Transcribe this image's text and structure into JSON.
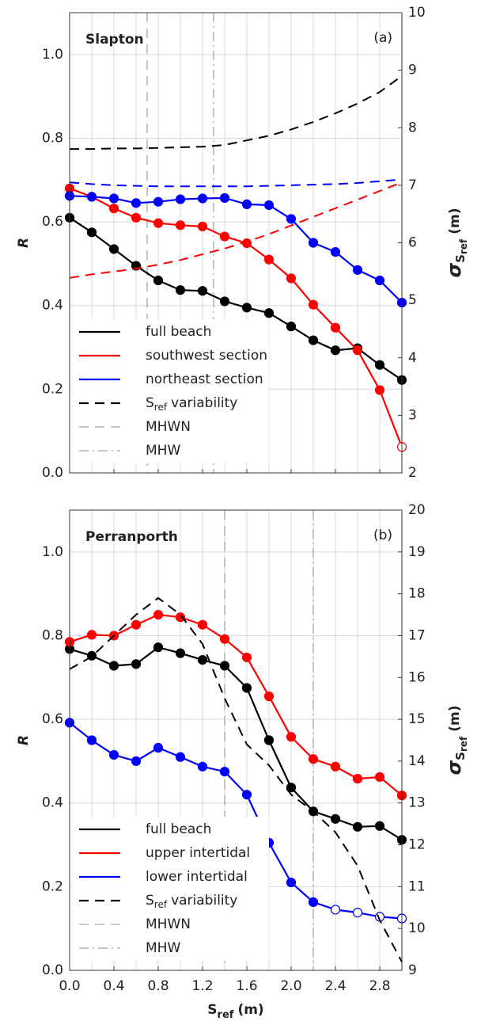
{
  "chart_data": [
    {
      "type": "line",
      "title": "Slapton",
      "panel_label": "(a)",
      "ylabel": "R",
      "y2label": {
        "symbol": "σ",
        "sub": "S",
        "subsub": "ref",
        "unit": "(m)"
      },
      "x": [
        0,
        0.2,
        0.4,
        0.6,
        0.8,
        1.0,
        1.2,
        1.4,
        1.6,
        1.8,
        2.0,
        2.2,
        2.4,
        2.6,
        2.8,
        3.0
      ],
      "xlim": [
        0,
        3
      ],
      "xticks": [
        {
          "value": 0,
          "label": "0.0"
        },
        0.4,
        0.8,
        1.2,
        1.6,
        {
          "value": 2,
          "label": "2.0"
        },
        2.4,
        2.8
      ],
      "xminorticks": [
        0.2,
        0.6,
        1.0,
        1.4,
        1.8,
        2.2,
        2.6
      ],
      "show_x_tick_labels": false,
      "ylim": [
        0,
        1.1
      ],
      "yticks": [
        {
          "value": 0,
          "label": "0.0"
        },
        0.2,
        0.4,
        0.6,
        0.8,
        {
          "value": 1,
          "label": "1.0"
        }
      ],
      "y2lim": [
        2,
        10
      ],
      "y2ticks": [
        2,
        3,
        4,
        5,
        6,
        7,
        8,
        9,
        10
      ],
      "grid": true,
      "legend": "lower left",
      "series": [
        {
          "name": "full beach",
          "color": "#000000",
          "style": "solid",
          "markers": true,
          "hollow": [],
          "values": [
            0.61,
            0.575,
            0.535,
            0.495,
            0.46,
            0.437,
            0.435,
            0.41,
            0.395,
            0.382,
            0.35,
            0.317,
            0.293,
            0.298,
            0.258,
            0.222
          ]
        },
        {
          "name": "southwest section",
          "color": "#ff0000",
          "style": "solid",
          "markers": true,
          "hollow": [
            15
          ],
          "values": [
            0.68,
            0.66,
            0.632,
            0.61,
            0.597,
            0.592,
            0.589,
            0.565,
            0.549,
            0.51,
            0.465,
            0.402,
            0.347,
            0.293,
            0.198,
            0.062
          ]
        },
        {
          "name": "northeast section",
          "color": "#0000ff",
          "style": "solid",
          "markers": true,
          "hollow": [],
          "values": [
            0.662,
            0.66,
            0.656,
            0.645,
            0.648,
            0.654,
            0.656,
            0.657,
            0.642,
            0.64,
            0.607,
            0.55,
            0.528,
            0.485,
            0.46,
            0.407
          ]
        },
        {
          "label": {
            "symbol": "S",
            "sub": "ref",
            "rest": "variability"
          },
          "color": "#000000",
          "style": "dashed",
          "axis": "y2",
          "markers": false,
          "values": [
            7.63,
            7.63,
            7.64,
            7.64,
            7.65,
            7.66,
            7.67,
            7.7,
            7.78,
            7.86,
            7.97,
            8.1,
            8.25,
            8.42,
            8.62,
            8.9
          ]
        },
        {
          "color": "#ff0000",
          "style": "dashed",
          "axis": "y2",
          "markers": false,
          "values": [
            5.39,
            5.45,
            5.5,
            5.55,
            5.62,
            5.7,
            5.8,
            5.9,
            6.02,
            6.15,
            6.3,
            6.45,
            6.6,
            6.75,
            6.9,
            7.05
          ]
        },
        {
          "color": "#0000ff",
          "style": "dashed",
          "axis": "y2",
          "markers": false,
          "values": [
            7.05,
            7.02,
            7.0,
            6.99,
            6.98,
            6.98,
            6.98,
            6.98,
            6.98,
            6.99,
            7.0,
            7.01,
            7.02,
            7.04,
            7.07,
            7.1
          ]
        }
      ],
      "reference_lines": [
        {
          "name": "MHWN",
          "x": 0.7,
          "style": "dashed",
          "color": "#a6a6a6"
        },
        {
          "name": "MHW",
          "x": 1.3,
          "style": "dashdot",
          "color": "#a6a6a6"
        }
      ]
    },
    {
      "type": "line",
      "title": "Perranporth",
      "panel_label": "(b)",
      "ylabel": "R",
      "y2label": {
        "symbol": "σ",
        "sub": "S",
        "subsub": "ref",
        "unit": "(m)"
      },
      "xlabel": {
        "symbol": "S",
        "sub": "ref",
        "unit": "(m)"
      },
      "x": [
        0,
        0.2,
        0.4,
        0.6,
        0.8,
        1.0,
        1.2,
        1.4,
        1.6,
        1.8,
        2.0,
        2.2,
        2.4,
        2.6,
        2.8,
        3.0
      ],
      "xlim": [
        0,
        3
      ],
      "xticks": [
        {
          "value": 0,
          "label": "0.0"
        },
        0.4,
        0.8,
        1.2,
        1.6,
        {
          "value": 2,
          "label": "2.0"
        },
        2.4,
        2.8
      ],
      "xminorticks": [
        0.2,
        0.6,
        1.0,
        1.4,
        1.8,
        2.2,
        2.6
      ],
      "show_x_tick_labels": true,
      "ylim": [
        0,
        1.1
      ],
      "yticks": [
        {
          "value": 0,
          "label": "0.0"
        },
        0.2,
        0.4,
        0.6,
        0.8,
        {
          "value": 1,
          "label": "1.0"
        }
      ],
      "y2lim": [
        9,
        20
      ],
      "y2ticks": [
        9,
        10,
        11,
        12,
        13,
        14,
        15,
        16,
        17,
        18,
        19,
        20
      ],
      "grid": true,
      "legend": "lower left",
      "series": [
        {
          "name": "full beach",
          "color": "#000000",
          "style": "solid",
          "markers": true,
          "hollow": [],
          "values": [
            0.768,
            0.752,
            0.728,
            0.732,
            0.772,
            0.758,
            0.742,
            0.728,
            0.675,
            0.55,
            0.437,
            0.38,
            0.362,
            0.343,
            0.345,
            0.312
          ]
        },
        {
          "name": "upper intertidal",
          "color": "#ff0000",
          "style": "solid",
          "markers": true,
          "hollow": [],
          "values": [
            0.785,
            0.802,
            0.8,
            0.826,
            0.85,
            0.844,
            0.826,
            0.792,
            0.748,
            0.655,
            0.558,
            0.505,
            0.487,
            0.458,
            0.462,
            0.418
          ]
        },
        {
          "name": "lower intertidal",
          "color": "#0000ff",
          "style": "solid",
          "markers": true,
          "hollow": [
            12,
            13,
            14,
            15
          ],
          "values": [
            0.592,
            0.55,
            0.515,
            0.5,
            0.532,
            0.51,
            0.487,
            0.475,
            0.42,
            0.305,
            0.21,
            0.163,
            0.145,
            0.138,
            0.128,
            0.124
          ]
        },
        {
          "label": {
            "symbol": "S",
            "sub": "ref",
            "rest": "variability"
          },
          "color": "#000000",
          "style": "dashed",
          "axis": "y2",
          "markers": false,
          "values": [
            16.2,
            16.5,
            17.0,
            17.5,
            17.9,
            17.5,
            16.8,
            15.5,
            14.4,
            13.9,
            13.2,
            12.8,
            12.3,
            11.5,
            10.2,
            9.2
          ]
        }
      ],
      "reference_lines": [
        {
          "name": "MHWN",
          "x": 1.4,
          "style": "dashed",
          "color": "#a6a6a6"
        },
        {
          "name": "MHW",
          "x": 2.2,
          "style": "dashdot",
          "color": "#a6a6a6"
        }
      ]
    }
  ]
}
